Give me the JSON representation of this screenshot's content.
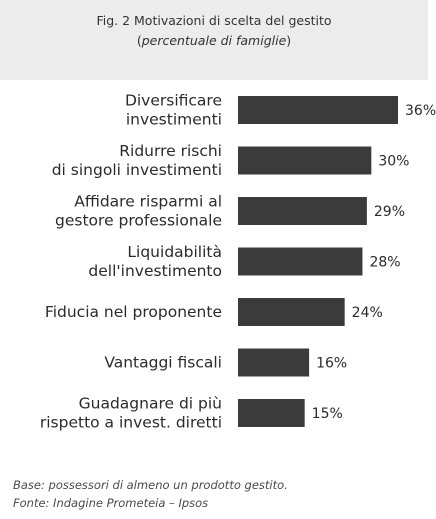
{
  "figure": {
    "title": "Fig. 2 Motivazioni di scelta del gestito",
    "subtitle": "percentuale di famiglie"
  },
  "chart_data": {
    "type": "bar",
    "orientation": "horizontal",
    "categories": [
      [
        "Diversificare",
        "investimenti"
      ],
      [
        "Ridurre rischi",
        "di singoli investimenti"
      ],
      [
        "Affidare risparmi al",
        "gestore professionale"
      ],
      [
        "Liquidabilità",
        "dell'investimento"
      ],
      [
        "Fiducia nel proponente"
      ],
      [
        "Vantaggi fiscali"
      ],
      [
        "Guadagnare di più",
        "rispetto a invest. diretti"
      ]
    ],
    "values": [
      36,
      30,
      29,
      28,
      24,
      16,
      15
    ],
    "value_labels": [
      "36%",
      "30%",
      "29%",
      "28%",
      "24%",
      "16%",
      "15%"
    ],
    "bar_color": "#3b3b3b",
    "grid": false,
    "legend": "none"
  },
  "notes": {
    "base": "Base: possessori di almeno un prodotto gestito.",
    "source": "Fonte: Indagine Prometeia – Ipsos"
  }
}
